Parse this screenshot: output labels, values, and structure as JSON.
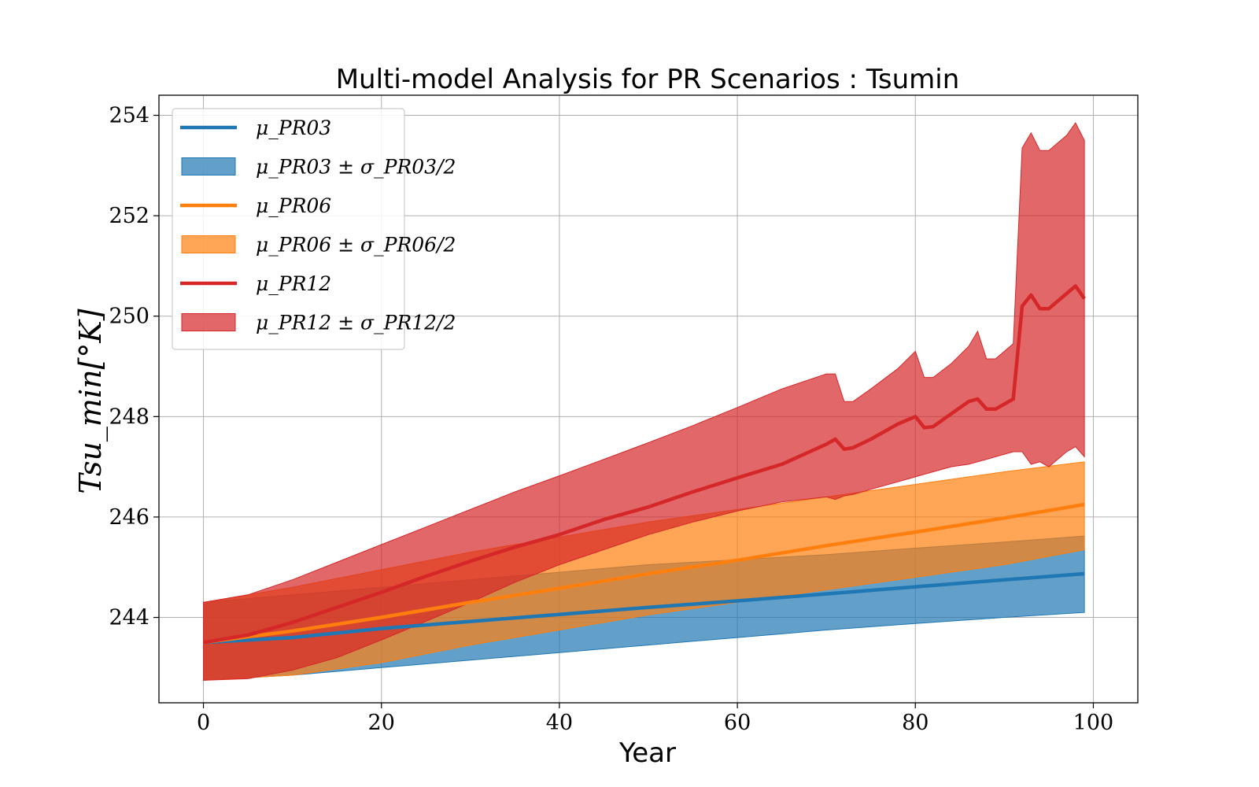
{
  "chart_data": {
    "type": "line",
    "title": "Multi-model Analysis for PR Scenarios : Tsumin",
    "xlabel": "Year",
    "ylabel": "Tsu_min[°K]",
    "xlim": [
      -5,
      105
    ],
    "ylim": [
      242.3,
      254.4
    ],
    "xticks": [
      0,
      20,
      40,
      60,
      80,
      100
    ],
    "yticks": [
      244,
      246,
      248,
      250,
      252,
      254
    ],
    "grid": true,
    "legend_position": "upper-left",
    "series": [
      {
        "name": "μ_PR03",
        "band_name": "μ_PR03 ± σ_PR03/2",
        "color": "#1f77b4",
        "x": [
          0,
          10,
          20,
          30,
          40,
          50,
          60,
          70,
          80,
          90,
          99
        ],
        "mean": [
          243.5,
          243.6,
          243.78,
          243.92,
          244.06,
          244.2,
          244.33,
          244.47,
          244.61,
          244.75,
          244.87
        ],
        "lower": [
          242.75,
          242.85,
          243.0,
          243.15,
          243.3,
          243.45,
          243.6,
          243.75,
          243.88,
          244.0,
          244.1
        ],
        "upper": [
          244.3,
          244.45,
          244.6,
          244.75,
          244.9,
          245.05,
          245.15,
          245.25,
          245.38,
          245.5,
          245.62
        ]
      },
      {
        "name": "μ_PR06",
        "band_name": "μ_PR06 ± σ_PR06/2",
        "color": "#ff7f0e",
        "x": [
          0,
          10,
          20,
          30,
          40,
          50,
          60,
          70,
          80,
          90,
          99
        ],
        "mean": [
          243.5,
          243.73,
          244.0,
          244.3,
          244.58,
          244.87,
          245.14,
          245.43,
          245.7,
          245.98,
          246.25
        ],
        "lower": [
          242.75,
          242.85,
          243.1,
          243.45,
          243.75,
          244.05,
          244.3,
          244.55,
          244.8,
          245.05,
          245.35
        ],
        "upper": [
          244.3,
          244.6,
          244.95,
          245.3,
          245.6,
          245.9,
          246.15,
          246.4,
          246.65,
          246.9,
          247.1
        ]
      },
      {
        "name": "μ_PR12",
        "band_name": "μ_PR12 ± σ_PR12/2",
        "color": "#d62728",
        "x": [
          0,
          5,
          10,
          15,
          20,
          25,
          30,
          35,
          40,
          45,
          50,
          55,
          60,
          65,
          70,
          71,
          72,
          73,
          75,
          78,
          80,
          81,
          82,
          84,
          86,
          87,
          88,
          89,
          91,
          92,
          93,
          94,
          95,
          97,
          98,
          99
        ],
        "mean": [
          243.5,
          243.65,
          243.9,
          244.2,
          244.5,
          244.82,
          245.12,
          245.4,
          245.65,
          245.95,
          246.2,
          246.5,
          246.78,
          247.05,
          247.45,
          247.55,
          247.35,
          247.38,
          247.55,
          247.85,
          248.0,
          247.78,
          247.8,
          248.05,
          248.3,
          248.35,
          248.15,
          248.15,
          248.35,
          250.2,
          250.42,
          250.15,
          250.15,
          250.45,
          250.6,
          250.35
        ],
        "lower": [
          242.75,
          242.78,
          242.95,
          243.2,
          243.55,
          243.92,
          244.3,
          244.7,
          245.05,
          245.35,
          245.65,
          245.9,
          246.12,
          246.3,
          246.4,
          246.35,
          246.42,
          246.45,
          246.55,
          246.7,
          246.8,
          246.85,
          246.9,
          247.0,
          247.05,
          247.1,
          247.15,
          247.2,
          247.3,
          247.3,
          247.05,
          247.1,
          247.0,
          247.3,
          247.4,
          247.2
        ],
        "upper": [
          244.3,
          244.45,
          244.75,
          245.1,
          245.45,
          245.8,
          246.15,
          246.5,
          246.82,
          247.15,
          247.48,
          247.82,
          248.18,
          248.55,
          248.85,
          248.85,
          248.3,
          248.3,
          248.55,
          248.95,
          249.3,
          248.78,
          248.78,
          249.05,
          249.4,
          249.7,
          249.15,
          249.15,
          249.45,
          253.35,
          253.65,
          253.3,
          253.3,
          253.6,
          253.85,
          253.5
        ]
      }
    ]
  }
}
